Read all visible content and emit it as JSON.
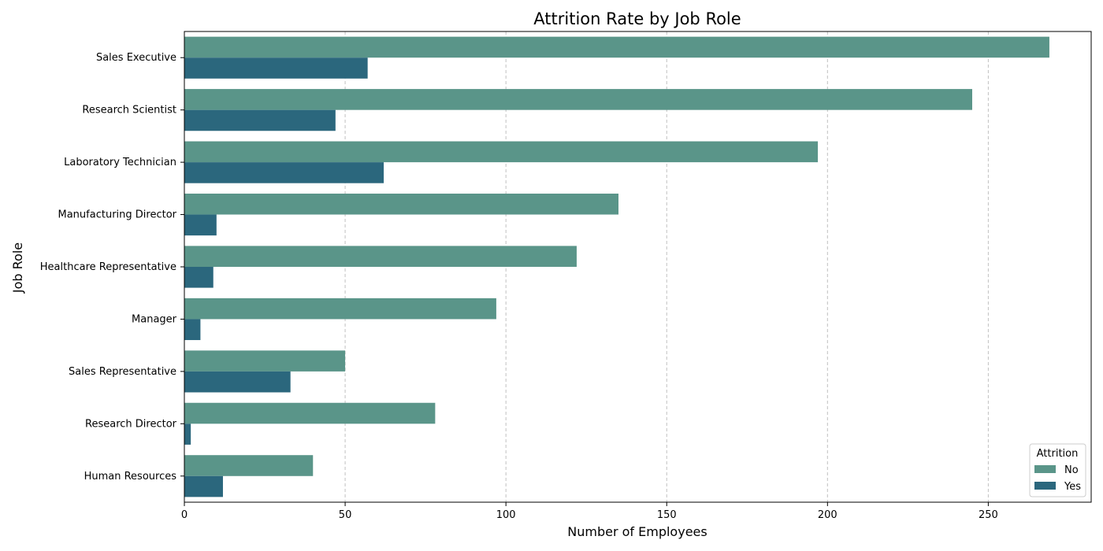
{
  "chart_data": {
    "type": "bar",
    "orientation": "horizontal",
    "title": "Attrition Rate by Job Role",
    "xlabel": "Number of Employees",
    "ylabel": "Job Role",
    "xlim": [
      0,
      282
    ],
    "xticks": [
      0,
      50,
      100,
      150,
      200,
      250
    ],
    "grid": "x-dashed",
    "categories": [
      "Sales Executive",
      "Research Scientist",
      "Laboratory Technician",
      "Manufacturing Director",
      "Healthcare Representative",
      "Manager",
      "Sales Representative",
      "Research Director",
      "Human Resources"
    ],
    "series": [
      {
        "name": "No",
        "color": "#5a9589",
        "values": [
          269,
          245,
          197,
          135,
          122,
          97,
          50,
          78,
          40
        ]
      },
      {
        "name": "Yes",
        "color": "#2b677d",
        "values": [
          57,
          47,
          62,
          10,
          9,
          5,
          33,
          2,
          12
        ]
      }
    ],
    "legend": {
      "title": "Attrition",
      "placement": "bottom-right"
    }
  }
}
